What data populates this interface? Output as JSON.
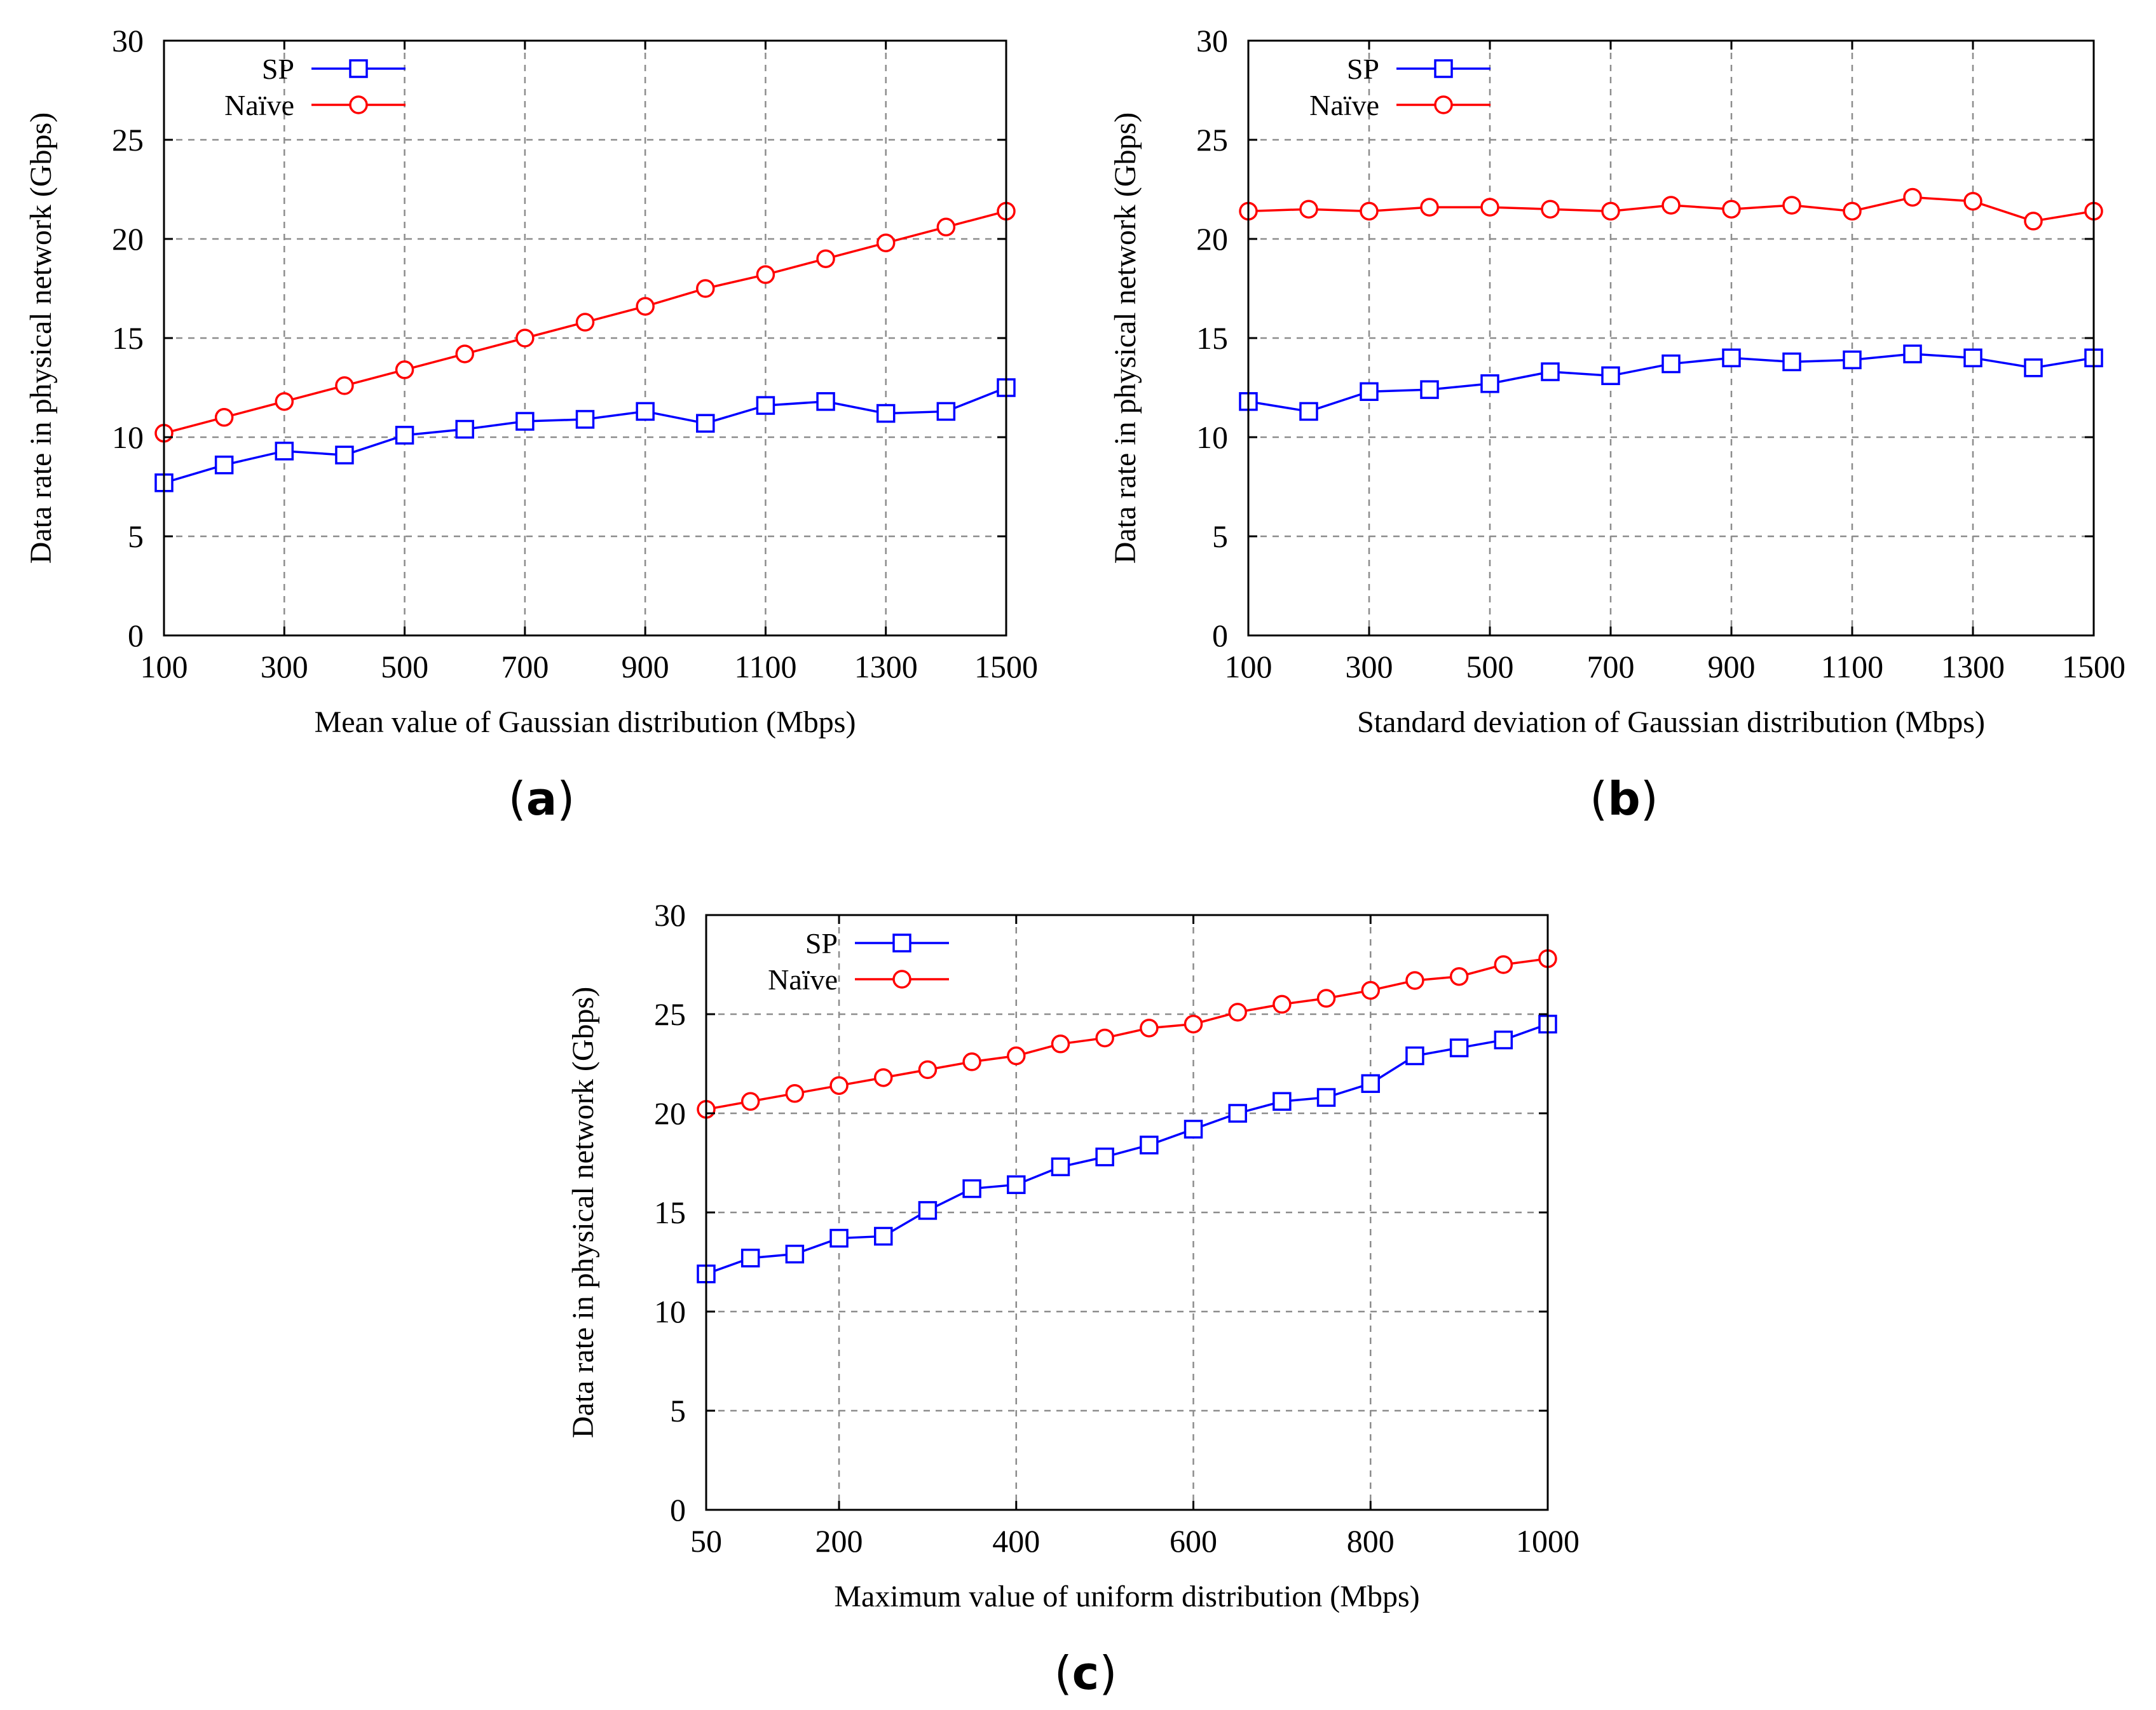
{
  "figure": {
    "panels": [
      {
        "label_open": "(",
        "label_letter": "a",
        "label_close": ")"
      },
      {
        "label_open": "(",
        "label_letter": "b",
        "label_close": ")"
      },
      {
        "label_open": "(",
        "label_letter": "c",
        "label_close": ")"
      }
    ]
  },
  "colors": {
    "sp": "#0000ff",
    "naive": "#ff0000",
    "grid": "#8c8c8c",
    "axis": "#000000"
  },
  "chart_data": [
    {
      "type": "line",
      "title": "",
      "xlabel": "Mean value of Gaussian distribution (Mbps)",
      "ylabel": "Data rate in physical network (Gbps)",
      "xlim": [
        100,
        1500
      ],
      "ylim": [
        0,
        30
      ],
      "xticks": [
        100,
        300,
        500,
        700,
        900,
        1100,
        1300,
        1500
      ],
      "yticks": [
        0,
        5,
        10,
        15,
        20,
        25,
        30
      ],
      "grid": true,
      "legend_position": "top-left",
      "x": [
        100,
        200,
        300,
        400,
        500,
        600,
        700,
        800,
        900,
        1000,
        1100,
        1200,
        1300,
        1400,
        1500
      ],
      "series": [
        {
          "name": "SP",
          "marker": "square",
          "color": "#0000ff",
          "values": [
            7.7,
            8.6,
            9.3,
            9.1,
            10.1,
            10.4,
            10.8,
            10.9,
            11.3,
            10.7,
            11.6,
            11.8,
            11.2,
            11.3,
            12.5
          ]
        },
        {
          "name": "Naïve",
          "marker": "circle",
          "color": "#ff0000",
          "values": [
            10.2,
            11.0,
            11.8,
            12.6,
            13.4,
            14.2,
            15.0,
            15.8,
            16.6,
            17.5,
            18.2,
            19.0,
            19.8,
            20.6,
            21.4
          ]
        }
      ]
    },
    {
      "type": "line",
      "title": "",
      "xlabel": "Standard deviation of Gaussian distribution (Mbps)",
      "ylabel": "Data rate in physical network (Gbps)",
      "xlim": [
        100,
        1500
      ],
      "ylim": [
        0,
        30
      ],
      "xticks": [
        100,
        300,
        500,
        700,
        900,
        1100,
        1300,
        1500
      ],
      "yticks": [
        0,
        5,
        10,
        15,
        20,
        25,
        30
      ],
      "grid": true,
      "legend_position": "top-left",
      "x": [
        100,
        200,
        300,
        400,
        500,
        600,
        700,
        800,
        900,
        1000,
        1100,
        1200,
        1300,
        1400,
        1500
      ],
      "series": [
        {
          "name": "SP",
          "marker": "square",
          "color": "#0000ff",
          "values": [
            11.8,
            11.3,
            12.3,
            12.4,
            12.7,
            13.3,
            13.1,
            13.7,
            14.0,
            13.8,
            13.9,
            14.2,
            14.0,
            13.5,
            14.0
          ]
        },
        {
          "name": "Naïve",
          "marker": "circle",
          "color": "#ff0000",
          "values": [
            21.4,
            21.5,
            21.4,
            21.6,
            21.6,
            21.5,
            21.4,
            21.7,
            21.5,
            21.7,
            21.4,
            22.1,
            21.9,
            20.9,
            21.4
          ]
        }
      ]
    },
    {
      "type": "line",
      "title": "",
      "xlabel": "Maximum value of uniform distribution (Mbps)",
      "ylabel": "Data rate in physical network (Gbps)",
      "xlim": [
        50,
        1000
      ],
      "ylim": [
        0,
        30
      ],
      "xticks": [
        50,
        200,
        400,
        600,
        800,
        1000
      ],
      "xgrid": [
        200,
        400,
        600,
        800
      ],
      "yticks": [
        0,
        5,
        10,
        15,
        20,
        25,
        30
      ],
      "grid": true,
      "legend_position": "top-left",
      "x": [
        50,
        100,
        150,
        200,
        250,
        300,
        350,
        400,
        450,
        500,
        550,
        600,
        650,
        700,
        750,
        800,
        850,
        900,
        950,
        1000
      ],
      "series": [
        {
          "name": "SP",
          "marker": "square",
          "color": "#0000ff",
          "values": [
            11.9,
            12.7,
            12.9,
            13.7,
            13.8,
            15.1,
            16.2,
            16.4,
            17.3,
            17.8,
            18.4,
            19.2,
            20.0,
            20.6,
            20.8,
            21.5,
            22.9,
            23.3,
            23.7,
            24.5
          ]
        },
        {
          "name": "Naïve",
          "marker": "circle",
          "color": "#ff0000",
          "values": [
            20.2,
            20.6,
            21.0,
            21.4,
            21.8,
            22.2,
            22.6,
            22.9,
            23.5,
            23.8,
            24.3,
            24.5,
            25.1,
            25.5,
            25.8,
            26.2,
            26.7,
            26.9,
            27.5,
            27.8
          ]
        }
      ]
    }
  ]
}
